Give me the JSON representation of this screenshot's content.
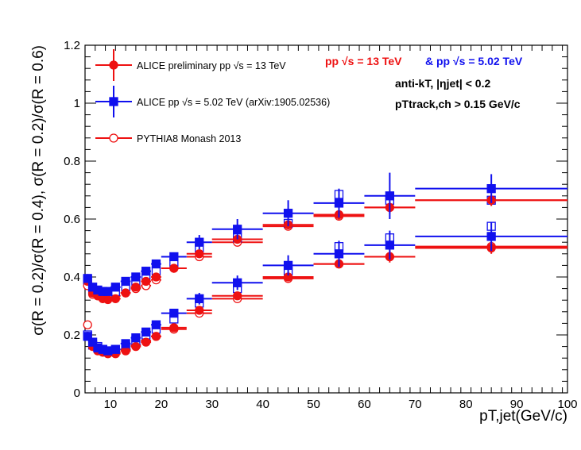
{
  "colors": {
    "alice13": "#ee1111",
    "alice502": "#1010ee",
    "pythia": "#ee1111",
    "axis": "#000000"
  },
  "header": {
    "pp13": "pp  √s = 13 TeV",
    "pp502": "& pp  √s = 5.02 TeV",
    "jet_line": "anti-kT, |ηjet| < 0.2",
    "track_line": "pTtrack,ch > 0.15 GeV/c"
  },
  "legend": [
    {
      "label": "ALICE preliminary pp √s = 13 TeV",
      "style": "filled-circle",
      "color": "#ee1111"
    },
    {
      "label": "ALICE pp √s = 5.02 TeV (arXiv:1905.02536)",
      "style": "filled-square",
      "color": "#1010ee"
    },
    {
      "label": "PYTHIA8 Monash 2013",
      "style": "open-circle",
      "color": "#ee1111"
    }
  ],
  "chart_data": {
    "type": "scatter",
    "xlabel": "pT,jet(GeV/c)",
    "ylabel": "σ(R = 0.2)/σ(R = 0.4), σ(R = 0.2)/σ(R = 0.6)",
    "xlim": [
      5,
      100
    ],
    "ylim": [
      0,
      1.2
    ],
    "xticks": [
      10,
      20,
      30,
      40,
      50,
      60,
      70,
      80,
      90,
      100
    ],
    "yticks": [
      0,
      0.2,
      0.4,
      0.6,
      0.8,
      1,
      1.2
    ],
    "xtick_labels": [
      "10",
      "20",
      "30",
      "40",
      "50",
      "60",
      "70",
      "80",
      "90",
      "100"
    ],
    "ytick_labels": [
      "0",
      "0.2",
      "0.4",
      "0.6",
      "0.8",
      "1",
      "1.2"
    ],
    "legend_position": "top-left",
    "x_bins": [
      [
        5,
        6
      ],
      [
        6,
        7
      ],
      [
        7,
        8
      ],
      [
        8,
        9
      ],
      [
        9,
        10
      ],
      [
        10,
        12
      ],
      [
        12,
        14
      ],
      [
        14,
        16
      ],
      [
        16,
        18
      ],
      [
        18,
        20
      ],
      [
        20,
        25
      ],
      [
        25,
        30
      ],
      [
        30,
        40
      ],
      [
        40,
        50
      ],
      [
        50,
        60
      ],
      [
        60,
        70
      ],
      [
        70,
        100
      ]
    ],
    "x": [
      5.5,
      6.5,
      7.5,
      8.5,
      9.5,
      11,
      13,
      15,
      17,
      19,
      22.5,
      27.5,
      35,
      45,
      55,
      65,
      85
    ],
    "series": [
      {
        "name": "ALICE preliminary pp √s = 13 TeV",
        "group": "R=0.2/R=0.6",
        "marker": "filled-circle",
        "color": "#ee1111",
        "values": [
          0.385,
          0.345,
          0.335,
          0.325,
          0.322,
          0.325,
          0.345,
          0.365,
          0.385,
          0.4,
          0.43,
          0.48,
          0.53,
          0.58,
          0.615,
          0.64,
          0.665
        ],
        "errors": [
          0.015,
          0.012,
          0.01,
          0.01,
          0.01,
          0.01,
          0.01,
          0.01,
          0.01,
          0.01,
          0.01,
          0.012,
          0.015,
          0.015,
          0.02,
          0.02,
          0.02
        ]
      },
      {
        "name": "ALICE preliminary pp √s = 13 TeV",
        "group": "R=0.2/R=0.4",
        "marker": "filled-circle",
        "color": "#ee1111",
        "values": [
          0.195,
          0.16,
          0.145,
          0.14,
          0.135,
          0.135,
          0.145,
          0.16,
          0.175,
          0.195,
          0.225,
          0.285,
          0.335,
          0.4,
          0.445,
          0.47,
          0.5
        ],
        "errors": [
          0.015,
          0.01,
          0.01,
          0.008,
          0.008,
          0.008,
          0.008,
          0.008,
          0.008,
          0.008,
          0.01,
          0.01,
          0.012,
          0.015,
          0.015,
          0.02,
          0.02
        ]
      },
      {
        "name": "ALICE pp √s = 5.02 TeV (arXiv:1905.02536)",
        "group": "R=0.2/R=0.6",
        "marker": "filled-square",
        "color": "#1010ee",
        "values": [
          0.395,
          0.365,
          0.355,
          0.35,
          0.35,
          0.365,
          0.385,
          0.4,
          0.42,
          0.445,
          0.47,
          0.52,
          0.565,
          0.62,
          0.655,
          0.68,
          0.705
        ],
        "errors": [
          0.015,
          0.012,
          0.012,
          0.012,
          0.012,
          0.012,
          0.012,
          0.012,
          0.015,
          0.015,
          0.015,
          0.025,
          0.035,
          0.045,
          0.05,
          0.08,
          0.05
        ]
      },
      {
        "name": "ALICE pp √s = 5.02 TeV (arXiv:1905.02536)",
        "group": "R=0.2/R=0.4",
        "marker": "filled-square",
        "color": "#1010ee",
        "values": [
          0.195,
          0.175,
          0.155,
          0.15,
          0.145,
          0.15,
          0.17,
          0.19,
          0.21,
          0.235,
          0.275,
          0.325,
          0.38,
          0.44,
          0.48,
          0.51,
          0.54
        ],
        "errors": [
          0.015,
          0.012,
          0.01,
          0.01,
          0.01,
          0.01,
          0.01,
          0.01,
          0.012,
          0.012,
          0.012,
          0.02,
          0.025,
          0.035,
          0.045,
          0.05,
          0.05
        ]
      },
      {
        "name": "PYTHIA8 Monash 2013",
        "group": "R=0.2/R=0.6",
        "marker": "open-circle",
        "color": "#ee1111",
        "values": [
          0.37,
          0.34,
          0.335,
          0.335,
          0.33,
          0.335,
          0.345,
          0.36,
          0.37,
          0.39,
          0.43,
          0.47,
          0.52,
          0.575,
          0.61,
          0.64,
          0.665
        ],
        "errors": [
          0.01,
          0.008,
          0.008,
          0.008,
          0.008,
          0.008,
          0.008,
          0.008,
          0.008,
          0.008,
          0.008,
          0.008,
          0.01,
          0.01,
          0.01,
          0.01,
          0.01
        ]
      },
      {
        "name": "PYTHIA8 Monash 2013",
        "group": "R=0.2/R=0.4",
        "marker": "open-circle",
        "color": "#ee1111",
        "values": [
          0.235,
          0.175,
          0.155,
          0.15,
          0.14,
          0.14,
          0.15,
          0.165,
          0.18,
          0.195,
          0.22,
          0.275,
          0.325,
          0.395,
          0.445,
          0.47,
          0.505
        ],
        "errors": [
          0.01,
          0.008,
          0.008,
          0.008,
          0.008,
          0.008,
          0.008,
          0.008,
          0.008,
          0.008,
          0.008,
          0.008,
          0.01,
          0.01,
          0.01,
          0.01,
          0.01
        ]
      },
      {
        "name": "ALICE pp √s = 5.02 TeV (arXiv:1905.02536)",
        "group": "R=0.2/R=0.6",
        "marker": "open-square",
        "color": "#1010ee",
        "values": [
          0.39,
          0.355,
          0.35,
          0.345,
          0.345,
          0.35,
          0.365,
          0.385,
          0.405,
          0.42,
          0.45,
          0.5,
          0.535,
          0.585,
          0.685,
          0.665,
          0.665
        ],
        "errors": [
          0.01,
          0.01,
          0.01,
          0.01,
          0.01,
          0.01,
          0.01,
          0.01,
          0.01,
          0.01,
          0.01,
          0.01,
          0.01,
          0.01,
          0.012,
          0.012,
          0.012
        ]
      },
      {
        "name": "ALICE pp √s = 5.02 TeV (arXiv:1905.02536)",
        "group": "R=0.2/R=0.4",
        "marker": "open-square",
        "color": "#1010ee",
        "values": [
          0.2,
          0.165,
          0.16,
          0.15,
          0.145,
          0.15,
          0.16,
          0.18,
          0.2,
          0.22,
          0.255,
          0.31,
          0.36,
          0.42,
          0.505,
          0.535,
          0.575
        ],
        "errors": [
          0.01,
          0.01,
          0.01,
          0.01,
          0.01,
          0.01,
          0.01,
          0.01,
          0.01,
          0.01,
          0.01,
          0.01,
          0.01,
          0.01,
          0.012,
          0.012,
          0.012
        ]
      }
    ]
  }
}
